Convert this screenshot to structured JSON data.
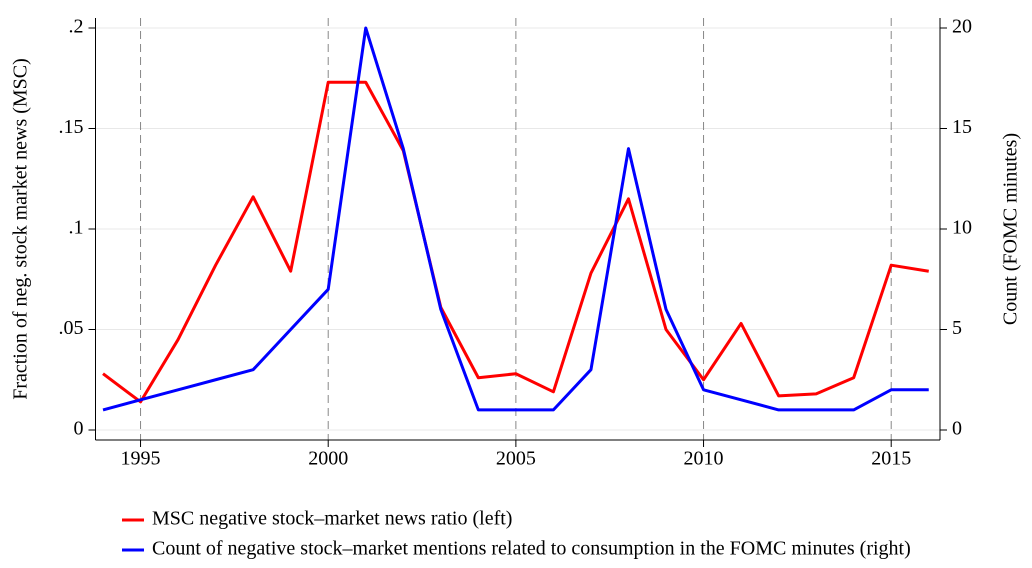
{
  "chart_data": {
    "type": "line",
    "x": [
      1994,
      1995,
      1996,
      1997,
      1998,
      1999,
      2000,
      2001,
      2002,
      2003,
      2004,
      2005,
      2006,
      2007,
      2008,
      2009,
      2010,
      2011,
      2012,
      2013,
      2014,
      2015,
      2016
    ],
    "series": [
      {
        "name": "MSC negative stock–market news ratio (left)",
        "color": "#ff0000",
        "axis": "y",
        "values": [
          0.028,
          0.014,
          0.045,
          0.082,
          0.116,
          0.079,
          0.173,
          0.173,
          0.139,
          0.061,
          0.026,
          0.028,
          0.019,
          0.078,
          0.115,
          0.05,
          0.025,
          0.053,
          0.017,
          0.018,
          0.026,
          0.082,
          0.079
        ]
      },
      {
        "name": "Count of negative stock–market mentions related to consumption in the FOMC minutes (right)",
        "color": "#0000ff",
        "axis": "y2",
        "values": [
          1,
          1.5,
          2,
          2.5,
          3,
          5,
          7,
          20,
          14,
          6,
          1,
          1,
          1,
          3,
          14,
          6,
          2,
          1.5,
          1,
          1,
          1,
          2,
          2
        ]
      }
    ],
    "ylabel": "Fraction of neg. stock market news (MSC)",
    "y2label": "Count (FOMC minutes)",
    "xlim": [
      1993.8,
      2016.3
    ],
    "xticks": [
      1995,
      2000,
      2005,
      2010,
      2015
    ],
    "ylim": [
      0,
      0.2
    ],
    "yticks": [
      0,
      {
        "value": 0.05,
        "label": ".05"
      },
      {
        "value": 0.1,
        "label": ".1"
      },
      {
        "value": 0.15,
        "label": ".15"
      },
      {
        "value": 0.2,
        "label": ".2"
      }
    ],
    "y2lim": [
      0,
      20
    ],
    "y2ticks": [
      0,
      5,
      10,
      15,
      20
    ],
    "grid": true
  }
}
